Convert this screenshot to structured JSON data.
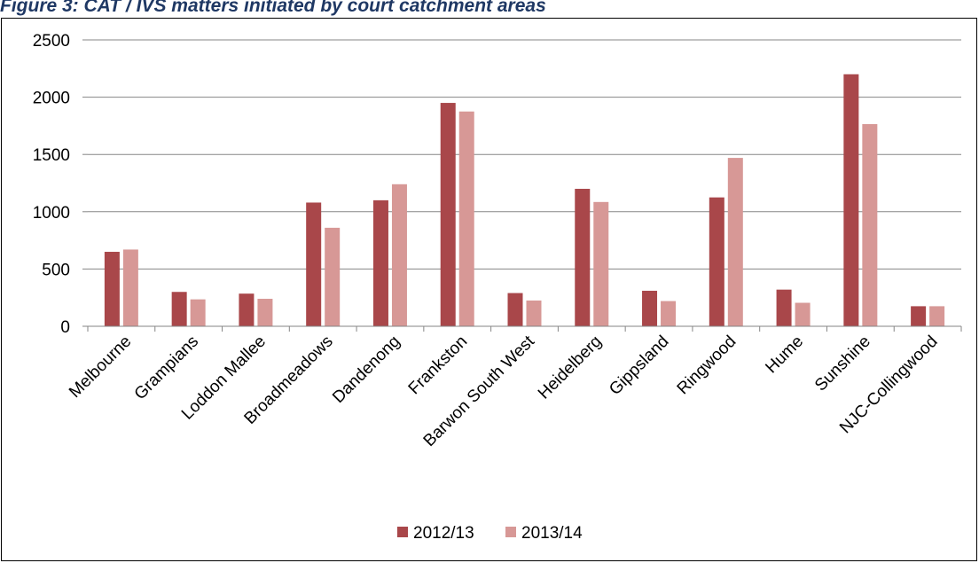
{
  "caption": "Figure 3: CAT / IVS matters initiated by court catchment areas",
  "chart_data": {
    "type": "bar",
    "title": "",
    "xlabel": "",
    "ylabel": "",
    "ylim": [
      0,
      2500
    ],
    "y_ticks": [
      0,
      500,
      1000,
      1500,
      2000,
      2500
    ],
    "grid": true,
    "legend_position": "bottom",
    "categories": [
      "Melbourne",
      "Grampians",
      "Loddon Mallee",
      "Broadmeadows",
      "Dandenong",
      "Frankston",
      "Barwon South West",
      "Heidelberg",
      "Gippsland",
      "Ringwood",
      "Hume",
      "Sunshine",
      "NJC-Collingwood"
    ],
    "series": [
      {
        "name": "2012/13",
        "color": "#a9474a",
        "values": [
          650,
          300,
          285,
          1080,
          1100,
          1950,
          290,
          1200,
          310,
          1125,
          320,
          2200,
          175
        ]
      },
      {
        "name": "2013/14",
        "color": "#d79896",
        "values": [
          670,
          235,
          240,
          860,
          1240,
          1875,
          225,
          1085,
          220,
          1470,
          205,
          1765,
          175
        ]
      }
    ]
  }
}
